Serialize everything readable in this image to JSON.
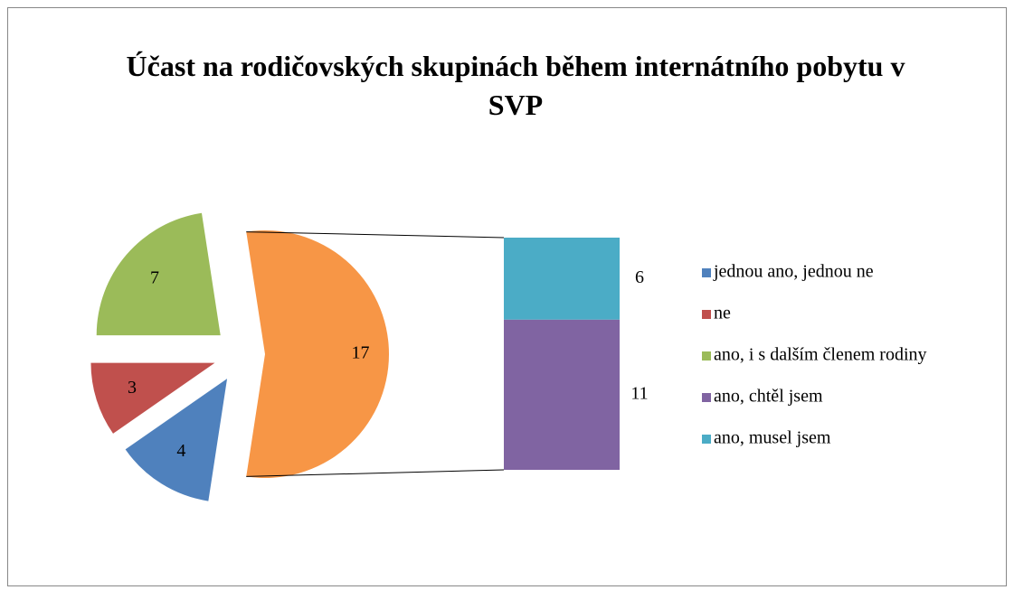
{
  "chart_data": {
    "type": "bar-of-pie",
    "title": "Účast na rodičovských skupinách během internátního pobytu v SVP",
    "categories": [
      "jednou ano, jednou ne",
      "ne",
      "ano, i s dalším členem rodiny",
      "ano, chtěl jsem",
      "ano, musel jsem"
    ],
    "values": [
      4,
      3,
      7,
      11,
      6
    ],
    "colors": [
      "#4f81bd",
      "#c0504d",
      "#9bbb59",
      "#8064a2",
      "#4bacc6"
    ],
    "pie_count": 3,
    "other_value": 17,
    "other_color": "#f79646",
    "legend": "right"
  }
}
